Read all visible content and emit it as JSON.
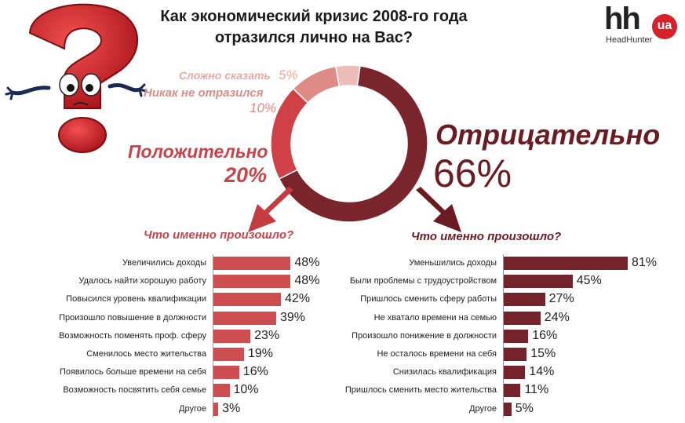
{
  "title_line1": "Как экономический кризис 2008-го года",
  "title_line2": "отразился лично на Вас?",
  "logo": {
    "mark": "hh",
    "badge": "ua",
    "sub": "HeadHunter"
  },
  "chart_data": [
    {
      "type": "pie",
      "variant": "donut",
      "title": "Как экономический кризис 2008-го года отразился лично на Вас?",
      "categories": [
        "Отрицательно",
        "Положительно",
        "Никак не отразился",
        "Сложно сказать"
      ],
      "values": [
        66,
        20,
        10,
        5
      ],
      "value_labels": [
        "66%",
        "20%",
        "10%",
        "5%"
      ],
      "colors": [
        "#7a252c",
        "#cf4146",
        "#de8b87",
        "#ecbcb9"
      ]
    },
    {
      "type": "bar",
      "orientation": "horizontal",
      "title": "Что именно произошло?",
      "categories": [
        "Увеличились доходы",
        "Удалось найти хорошую работу",
        "Повысился уровень квалификации",
        "Произошло повышение в должности",
        "Возможность поменять проф. сферу",
        "Сменилось место жительства",
        "Появилось больше времени на себя",
        "Возможность посвятить себя семье",
        "Другое"
      ],
      "values": [
        48,
        48,
        42,
        39,
        23,
        19,
        16,
        10,
        3
      ],
      "value_labels": [
        "48%",
        "48%",
        "42%",
        "39%",
        "23%",
        "19%",
        "16%",
        "10%",
        "3%"
      ],
      "unit": "%",
      "color": "#cd4d51"
    },
    {
      "type": "bar",
      "orientation": "horizontal",
      "title": "Что именно произошло?",
      "categories": [
        "Уменьшились доходы",
        "Были проблемы с трудоустройством",
        "Пришлось сменить сферу работы",
        "Не хватало времени на семью",
        "Произошло понижение в должности",
        "Не осталось времени на себя",
        "Снизилась квалификация",
        "Пришлось сменить место жительства",
        "Другое"
      ],
      "values": [
        81,
        45,
        27,
        24,
        16,
        15,
        14,
        11,
        5
      ],
      "value_labels": [
        "81%",
        "45%",
        "27%",
        "24%",
        "16%",
        "15%",
        "14%",
        "11%",
        "5%"
      ],
      "unit": "%",
      "color": "#75232a"
    }
  ]
}
